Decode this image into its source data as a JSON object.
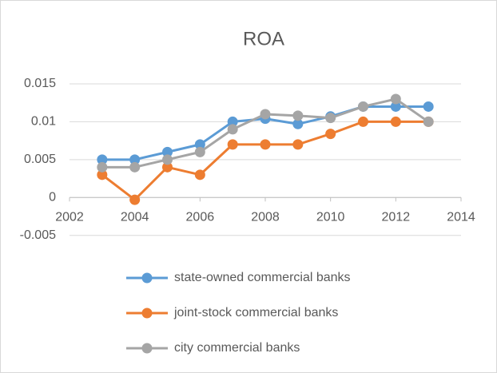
{
  "chart_data": {
    "type": "line",
    "title": "ROA",
    "x": [
      2003,
      2004,
      2005,
      2006,
      2007,
      2008,
      2009,
      2010,
      2011,
      2012,
      2013
    ],
    "series": [
      {
        "name": "state-owned commercial banks",
        "color": "#5b9bd5",
        "values": [
          0.005,
          0.005,
          0.006,
          0.007,
          0.01,
          0.0104,
          0.0097,
          0.0107,
          0.012,
          0.012,
          0.012
        ]
      },
      {
        "name": "joint-stock commercial banks",
        "color": "#ed7d31",
        "values": [
          0.003,
          -0.0003,
          0.004,
          0.003,
          0.007,
          0.007,
          0.007,
          0.0084,
          0.01,
          0.01,
          0.01
        ]
      },
      {
        "name": "city commercial banks",
        "color": "#a5a5a5",
        "values": [
          0.004,
          0.004,
          0.005,
          0.006,
          0.009,
          0.011,
          0.0108,
          0.0105,
          0.012,
          0.013,
          0.01
        ]
      }
    ],
    "xlim": [
      2002,
      2014
    ],
    "xticks": [
      2002,
      2004,
      2006,
      2008,
      2010,
      2012,
      2014
    ],
    "ylim": [
      -0.005,
      0.015
    ],
    "yticks": [
      -0.005,
      0,
      0.005,
      0.01,
      0.015
    ],
    "grid": true,
    "legend": "bottom"
  }
}
